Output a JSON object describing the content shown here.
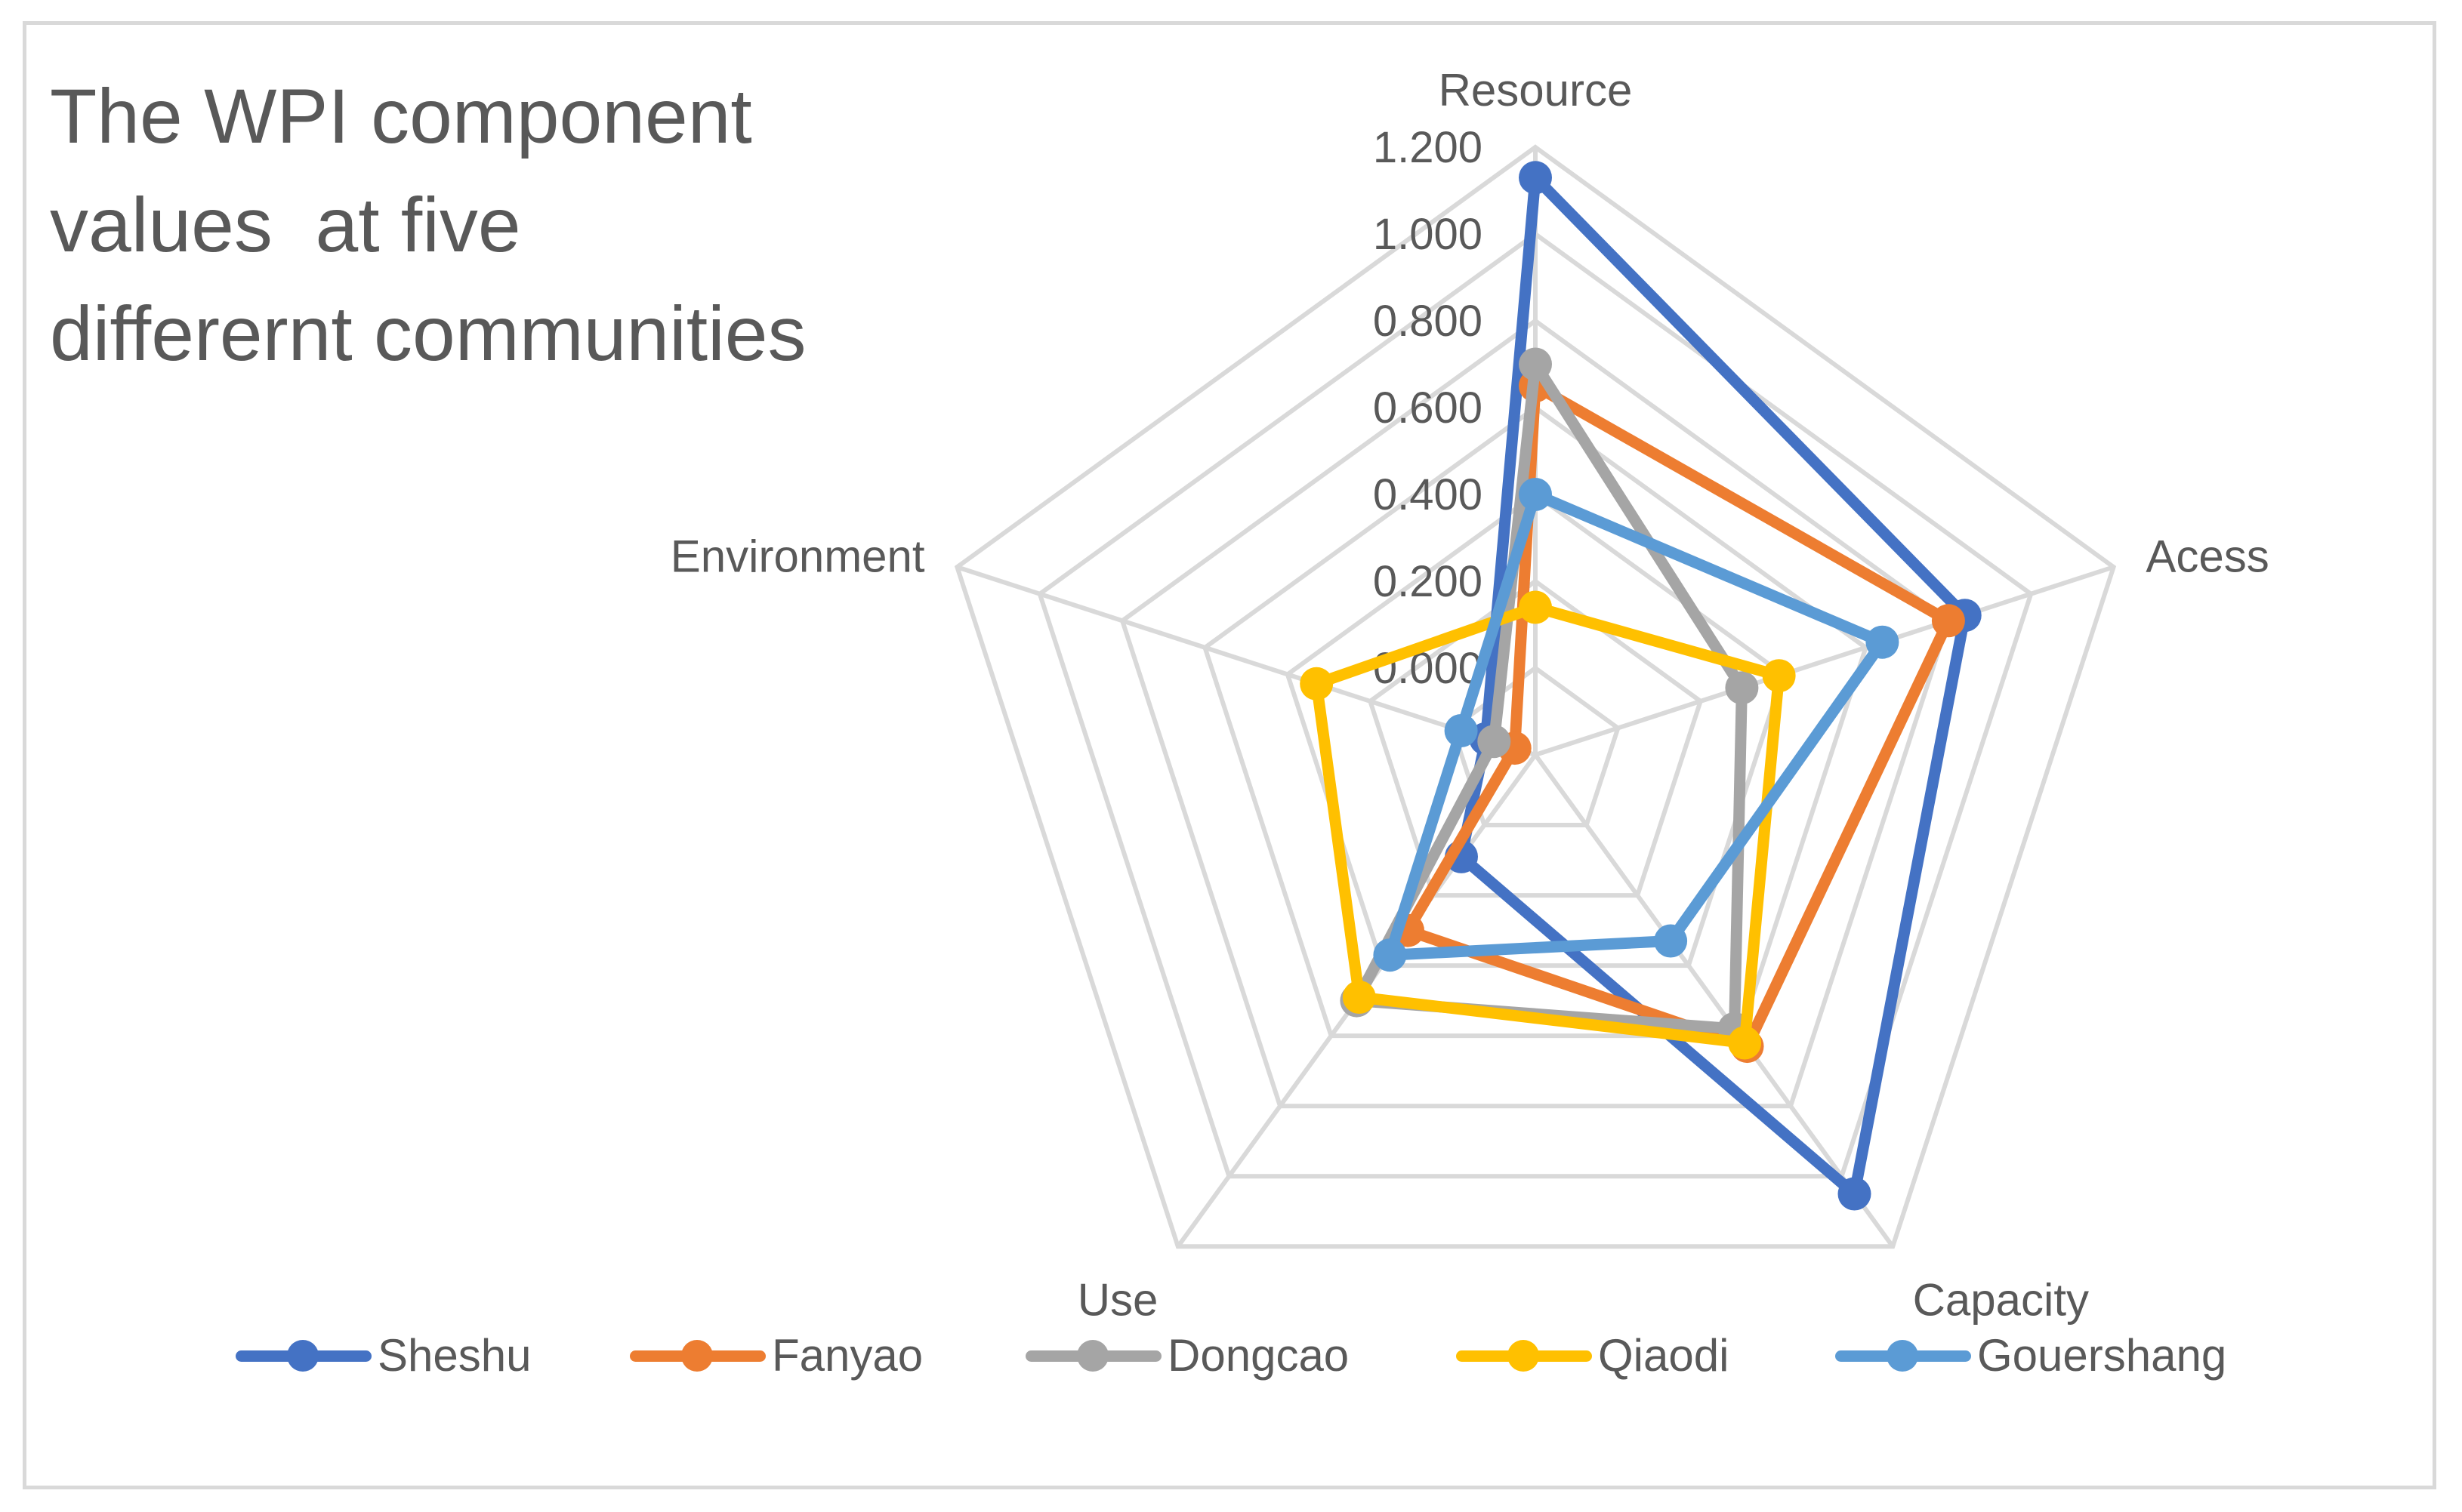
{
  "chart_data": {
    "type": "radar",
    "title_lines": [
      "The WPI component",
      "values  at five",
      "differernt communities"
    ],
    "categories": [
      "Resource",
      "Acess",
      "Capacity",
      "Use",
      "Environment"
    ],
    "tick_labels": [
      "0.000",
      "0.200",
      "0.400",
      "0.600",
      "0.800",
      "1.000",
      "1.200"
    ],
    "rmin": -0.2,
    "rmax": 1.2,
    "gridlines": [
      -0.2,
      0.0,
      0.2,
      0.4,
      0.6,
      0.8,
      1.0,
      1.2
    ],
    "legend_position": "bottom",
    "series": [
      {
        "name": "Sheshu",
        "color": "#4472C4",
        "values": [
          1.13,
          0.84,
          1.05,
          0.09,
          -0.08
        ]
      },
      {
        "name": "Fanyao",
        "color": "#ED7D31",
        "values": [
          0.65,
          0.8,
          0.63,
          0.3,
          -0.15
        ]
      },
      {
        "name": "Dongcao",
        "color": "#A5A5A5",
        "values": [
          0.7,
          0.3,
          0.58,
          0.5,
          -0.1
        ]
      },
      {
        "name": "Qiaodi",
        "color": "#FFC000",
        "values": [
          0.14,
          0.39,
          0.62,
          0.49,
          0.33
        ]
      },
      {
        "name": "Gouershang",
        "color": "#5B9BD5",
        "values": [
          0.4,
          0.64,
          0.33,
          0.37,
          -0.02
        ]
      }
    ]
  }
}
